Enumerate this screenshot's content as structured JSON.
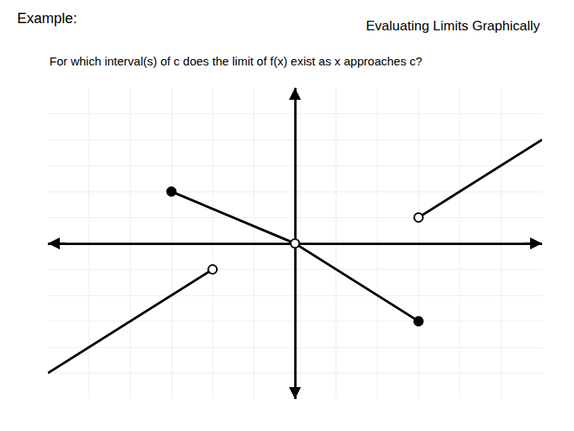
{
  "chart_data": {
    "type": "line",
    "title": "Example:",
    "subtitle": "For which interval(s) of c does the limit of f(x) exist as x approaches c?",
    "annotations": [
      "Evaluating Limits Graphically"
    ],
    "series": [
      {
        "type": "line",
        "color": "#000000",
        "x": [
          -6,
          -2
        ],
        "values": [
          -5,
          -1
        ]
      },
      {
        "type": "line",
        "color": "#000000",
        "x": [
          -3,
          0
        ],
        "values": [
          2,
          0
        ]
      },
      {
        "type": "line",
        "color": "#000000",
        "x": [
          0,
          3
        ],
        "values": [
          0,
          -3
        ]
      },
      {
        "type": "line",
        "color": "#000000",
        "x": [
          3,
          6
        ],
        "values": [
          1,
          4
        ]
      },
      {
        "type": "scatter",
        "marker": "open",
        "color": "#000000",
        "x": [
          -2,
          3,
          0
        ],
        "values": [
          -1,
          1,
          0
        ]
      },
      {
        "type": "scatter",
        "marker": "closed",
        "color": "#000000",
        "x": [
          -3,
          3
        ],
        "values": [
          2,
          -3
        ]
      }
    ],
    "xlim": [
      -6,
      6
    ],
    "ylim": [
      -6,
      6
    ],
    "xticks": [
      -6,
      -5,
      -4,
      -3,
      -2,
      -1,
      0,
      1,
      2,
      3,
      4,
      5,
      6
    ],
    "yticks": [
      -6,
      -5,
      -4,
      -3,
      -2,
      -1,
      0,
      1,
      2,
      3,
      4,
      5,
      6
    ],
    "tick_labels": false,
    "grid": true
  }
}
